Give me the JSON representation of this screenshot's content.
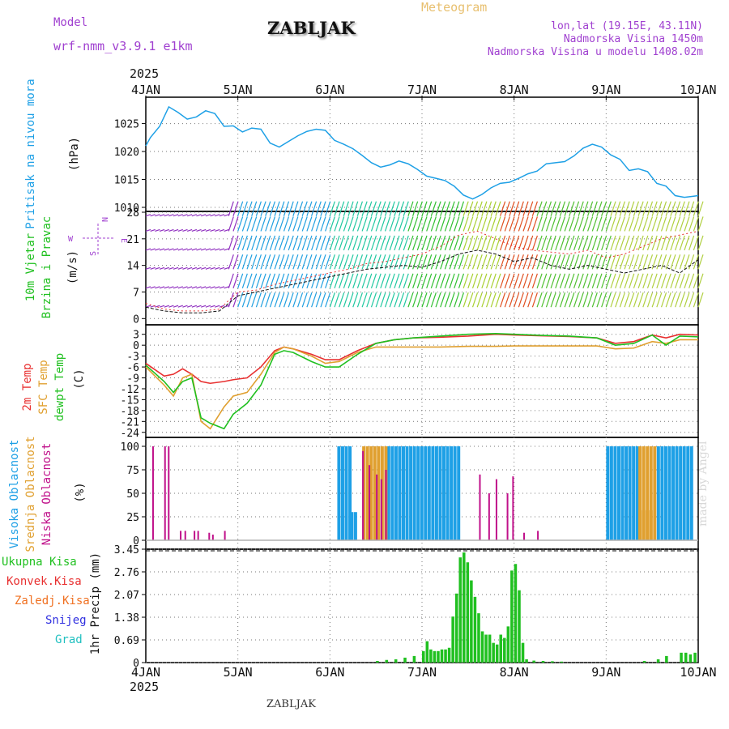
{
  "header": {
    "model_label": "Model",
    "model_name": "wrf-nmm_v3.9.1  e1km",
    "title": "ZABLJAK",
    "meteogram_label": "Meteogram",
    "lonlat": "lon,lat (19.15E, 43.11N)",
    "elevation": "Nadmorska Visina 1450m",
    "model_elevation": "Nadmorska Visina u modelu 1408.02m",
    "year_top": "2025",
    "year_bottom": "2025",
    "footer_title": "ZABLJAK",
    "watermark": "made by Angel"
  },
  "colors": {
    "pressure": "#1ea0e6",
    "cloud_high": "#1ea0e6",
    "cloud_mid": "#e0a030",
    "cloud_low": "#c0108a",
    "temp_2m": "#e83030",
    "temp_sfc": "#e0a030",
    "dewpoint": "#20c020",
    "precip_total": "#20c020",
    "precip_conv": "#e83030",
    "precip_frozen": "#f07020",
    "snow": "#3030e0",
    "graupel": "#20c0c0",
    "wind_labels": "#20c020",
    "wind_rose": "#a040d0"
  },
  "chart_data": [
    {
      "type": "line",
      "panel": "pressure",
      "ylabel_lines": [
        "Pritisak na nivou mora",
        "(hPa)"
      ],
      "yticks": [
        "1010",
        "1015",
        "1020",
        "1025"
      ],
      "ylim": [
        1010,
        1029
      ],
      "x_ticks": [
        "4JAN",
        "5JAN",
        "6JAN",
        "7JAN",
        "8JAN",
        "9JAN",
        "10JAN"
      ],
      "x": [
        0,
        0.05,
        0.15,
        0.25,
        0.35,
        0.45,
        0.55,
        0.65,
        0.75,
        0.85,
        0.95,
        1.05,
        1.15,
        1.25,
        1.35,
        1.45,
        1.55,
        1.65,
        1.75,
        1.85,
        1.95,
        2.05,
        2.15,
        2.25,
        2.35,
        2.45,
        2.55,
        2.65,
        2.75,
        2.85,
        2.95,
        3.05,
        3.15,
        3.25,
        3.35,
        3.45,
        3.55,
        3.65,
        3.75,
        3.85,
        3.95,
        4.05,
        4.15,
        4.25,
        4.35,
        4.45,
        4.55,
        4.65,
        4.75,
        4.85,
        4.95,
        5.05,
        5.15,
        5.25,
        5.35,
        5.45,
        5.55,
        5.65,
        5.75,
        5.85,
        5.95,
        6.0
      ],
      "y": [
        1021.0,
        1022.5,
        1024.5,
        1028.0,
        1027.0,
        1025.8,
        1026.2,
        1027.3,
        1026.8,
        1024.5,
        1024.6,
        1023.5,
        1024.2,
        1024.0,
        1021.5,
        1020.8,
        1021.8,
        1022.8,
        1023.6,
        1024.0,
        1023.8,
        1022.0,
        1021.3,
        1020.5,
        1019.3,
        1018.0,
        1017.2,
        1017.6,
        1018.3,
        1017.8,
        1016.8,
        1015.6,
        1015.2,
        1014.8,
        1013.8,
        1012.2,
        1011.5,
        1012.3,
        1013.5,
        1014.3,
        1014.5,
        1015.2,
        1016.0,
        1016.5,
        1017.8,
        1018.0,
        1018.2,
        1019.2,
        1020.6,
        1021.3,
        1020.8,
        1019.4,
        1018.6,
        1016.6,
        1016.9,
        1016.4,
        1014.3,
        1013.8,
        1012.1,
        1011.8,
        1012.0,
        1012.1
      ]
    },
    {
      "type": "line",
      "panel": "wind",
      "ylabel_lines": [
        "10m Vjetar",
        "Brzina i Pravac",
        "(m/s)"
      ],
      "yticks": [
        "0",
        "7",
        "14",
        "21",
        "28"
      ],
      "ylim": [
        -1,
        28
      ],
      "wind_rose_labels": [
        "N",
        "W",
        "E",
        "S"
      ],
      "x": [
        0,
        0.2,
        0.4,
        0.6,
        0.8,
        1.0,
        1.2,
        1.4,
        1.6,
        1.8,
        2.0,
        2.2,
        2.4,
        2.6,
        2.8,
        3.0,
        3.2,
        3.4,
        3.6,
        3.8,
        4.0,
        4.2,
        4.4,
        4.6,
        4.8,
        5.0,
        5.2,
        5.4,
        5.6,
        5.8,
        6.0
      ],
      "series": [
        {
          "values": [
            3.0,
            2.0,
            1.5,
            1.5,
            2.0,
            6.0,
            7.0,
            8.0,
            9.0,
            10.0,
            11.0,
            12.0,
            13.0,
            13.5,
            14.0,
            13.5,
            15.0,
            17.0,
            18.0,
            17.0,
            15.0,
            16.0,
            14.0,
            13.0,
            14.0,
            13.0,
            12.0,
            13.0,
            14.0,
            12.0,
            15.5
          ]
        },
        {
          "values": [
            4.0,
            2.5,
            2.0,
            2.0,
            2.5,
            7.0,
            7.5,
            9.0,
            10.0,
            11.0,
            12.0,
            13.0,
            14.5,
            15.0,
            16.0,
            17.0,
            19.0,
            22.0,
            23.0,
            21.0,
            19.0,
            18.0,
            17.5,
            17.0,
            18.0,
            16.0,
            17.0,
            19.0,
            21.0,
            22.0,
            23.0
          ]
        }
      ]
    },
    {
      "type": "line",
      "panel": "temperature",
      "ylabel_lines": [
        "2m Temp",
        "SFC Temp",
        "dewpt Temp",
        "(C)"
      ],
      "yticks": [
        "-24",
        "-21",
        "-18",
        "-15",
        "-12",
        "-9",
        "-6",
        "-3",
        "0",
        "3"
      ],
      "ylim": [
        -24.5,
        4.5
      ],
      "x": [
        0,
        0.2,
        0.3,
        0.4,
        0.5,
        0.6,
        0.7,
        0.85,
        0.95,
        1.1,
        1.25,
        1.4,
        1.5,
        1.6,
        1.8,
        1.95,
        2.1,
        2.3,
        2.5,
        2.7,
        2.9,
        3.2,
        3.5,
        3.8,
        4.0,
        4.3,
        4.6,
        4.9,
        5.1,
        5.3,
        5.5,
        5.65,
        5.8,
        6.0
      ],
      "series": [
        {
          "name": "2m Temp",
          "values": [
            -5.0,
            -8.5,
            -8.0,
            -6.5,
            -8.0,
            -10.0,
            -10.5,
            -10.0,
            -9.5,
            -9.0,
            -6.0,
            -1.5,
            -0.5,
            -1.0,
            -2.5,
            -4.0,
            -4.0,
            -1.5,
            0.5,
            1.5,
            2.0,
            2.2,
            2.5,
            3.0,
            2.8,
            2.6,
            2.4,
            2.0,
            0.5,
            1.0,
            2.8,
            2.0,
            3.0,
            2.8
          ]
        },
        {
          "name": "SFC Temp",
          "values": [
            -6.0,
            -11.0,
            -14.0,
            -9.0,
            -8.0,
            -21.0,
            -23.0,
            -17.0,
            -14.0,
            -13.0,
            -8.0,
            -2.0,
            -0.5,
            -1.0,
            -3.0,
            -5.0,
            -4.5,
            -2.0,
            -0.5,
            -0.5,
            -0.5,
            -0.5,
            -0.3,
            -0.3,
            -0.2,
            -0.2,
            -0.2,
            -0.2,
            -1.0,
            -0.8,
            1.0,
            0.5,
            1.5,
            1.5
          ]
        },
        {
          "name": "dewpt Temp",
          "values": [
            -5.5,
            -10.0,
            -13.0,
            -10.0,
            -9.0,
            -20.0,
            -21.5,
            -23.0,
            -19.0,
            -16.0,
            -11.0,
            -2.5,
            -1.5,
            -2.0,
            -4.5,
            -6.0,
            -6.0,
            -2.5,
            0.5,
            1.5,
            2.0,
            2.5,
            3.0,
            3.2,
            3.0,
            2.7,
            2.5,
            2.0,
            0.0,
            0.5,
            2.8,
            0.0,
            2.5,
            2.3
          ]
        }
      ]
    },
    {
      "type": "bar",
      "panel": "cloud",
      "ylabel_lines": [
        "Visoka Oblacnost",
        "Srednja Oblacnost",
        "Niska Oblacnost",
        "(%)"
      ],
      "yticks": [
        "0",
        "25",
        "50",
        "75",
        "100"
      ],
      "ylim": [
        0,
        100
      ],
      "high_spans": [
        [
          2.08,
          2.22,
          100
        ],
        [
          2.22,
          2.3,
          30
        ],
        [
          2.62,
          3.4,
          100
        ],
        [
          5.0,
          5.35,
          100
        ],
        [
          5.55,
          5.95,
          100
        ]
      ],
      "mid_spans": [
        [
          2.35,
          2.62,
          100
        ],
        [
          5.35,
          5.55,
          100
        ],
        [
          5.35,
          5.5,
          32
        ]
      ],
      "low_bars": [
        [
          0.07,
          100
        ],
        [
          0.2,
          100
        ],
        [
          0.24,
          100
        ],
        [
          0.37,
          10
        ],
        [
          0.42,
          10
        ],
        [
          0.52,
          10
        ],
        [
          0.56,
          10
        ],
        [
          0.68,
          8
        ],
        [
          0.72,
          6
        ],
        [
          0.85,
          10
        ],
        [
          2.35,
          95
        ],
        [
          2.42,
          80
        ],
        [
          2.5,
          70
        ],
        [
          2.55,
          65
        ],
        [
          2.6,
          75
        ],
        [
          3.62,
          70
        ],
        [
          3.72,
          50
        ],
        [
          3.8,
          65
        ],
        [
          3.92,
          50
        ],
        [
          3.98,
          68
        ],
        [
          4.1,
          8
        ],
        [
          4.25,
          10
        ]
      ]
    },
    {
      "type": "bar",
      "panel": "precipitation",
      "ylabel_lines": [
        "1hr Precip (mm)"
      ],
      "yticks": [
        "0",
        "0.69",
        "1.38",
        "2.07",
        "2.76",
        "3.45"
      ],
      "ylim": [
        0,
        3.45
      ],
      "legend": [
        "Ukupna Kisa",
        "Konvek.Kisa",
        "Zaledj.Kisa",
        "Snijeg",
        "Grad"
      ],
      "bar_width_days": 0.04,
      "x": [
        2.5,
        2.6,
        2.7,
        2.8,
        2.9,
        3.0,
        3.04,
        3.08,
        3.12,
        3.16,
        3.2,
        3.24,
        3.28,
        3.32,
        3.36,
        3.4,
        3.44,
        3.48,
        3.52,
        3.56,
        3.6,
        3.64,
        3.68,
        3.72,
        3.76,
        3.8,
        3.84,
        3.88,
        3.92,
        3.96,
        4.0,
        4.04,
        4.08,
        4.12,
        4.2,
        4.3,
        4.4,
        4.5,
        5.4,
        5.55,
        5.64,
        5.8,
        5.85,
        5.9,
        5.95
      ],
      "values": [
        0.05,
        0.08,
        0.1,
        0.15,
        0.2,
        0.35,
        0.65,
        0.4,
        0.35,
        0.35,
        0.4,
        0.4,
        0.45,
        1.4,
        2.1,
        3.2,
        3.35,
        3.05,
        2.5,
        2.0,
        1.5,
        0.95,
        0.85,
        0.85,
        0.6,
        0.55,
        0.85,
        0.75,
        1.1,
        2.8,
        3.0,
        2.2,
        0.6,
        0.1,
        0.06,
        0.05,
        0.04,
        0.03,
        0.05,
        0.1,
        0.2,
        0.3,
        0.3,
        0.25,
        0.3
      ]
    }
  ]
}
